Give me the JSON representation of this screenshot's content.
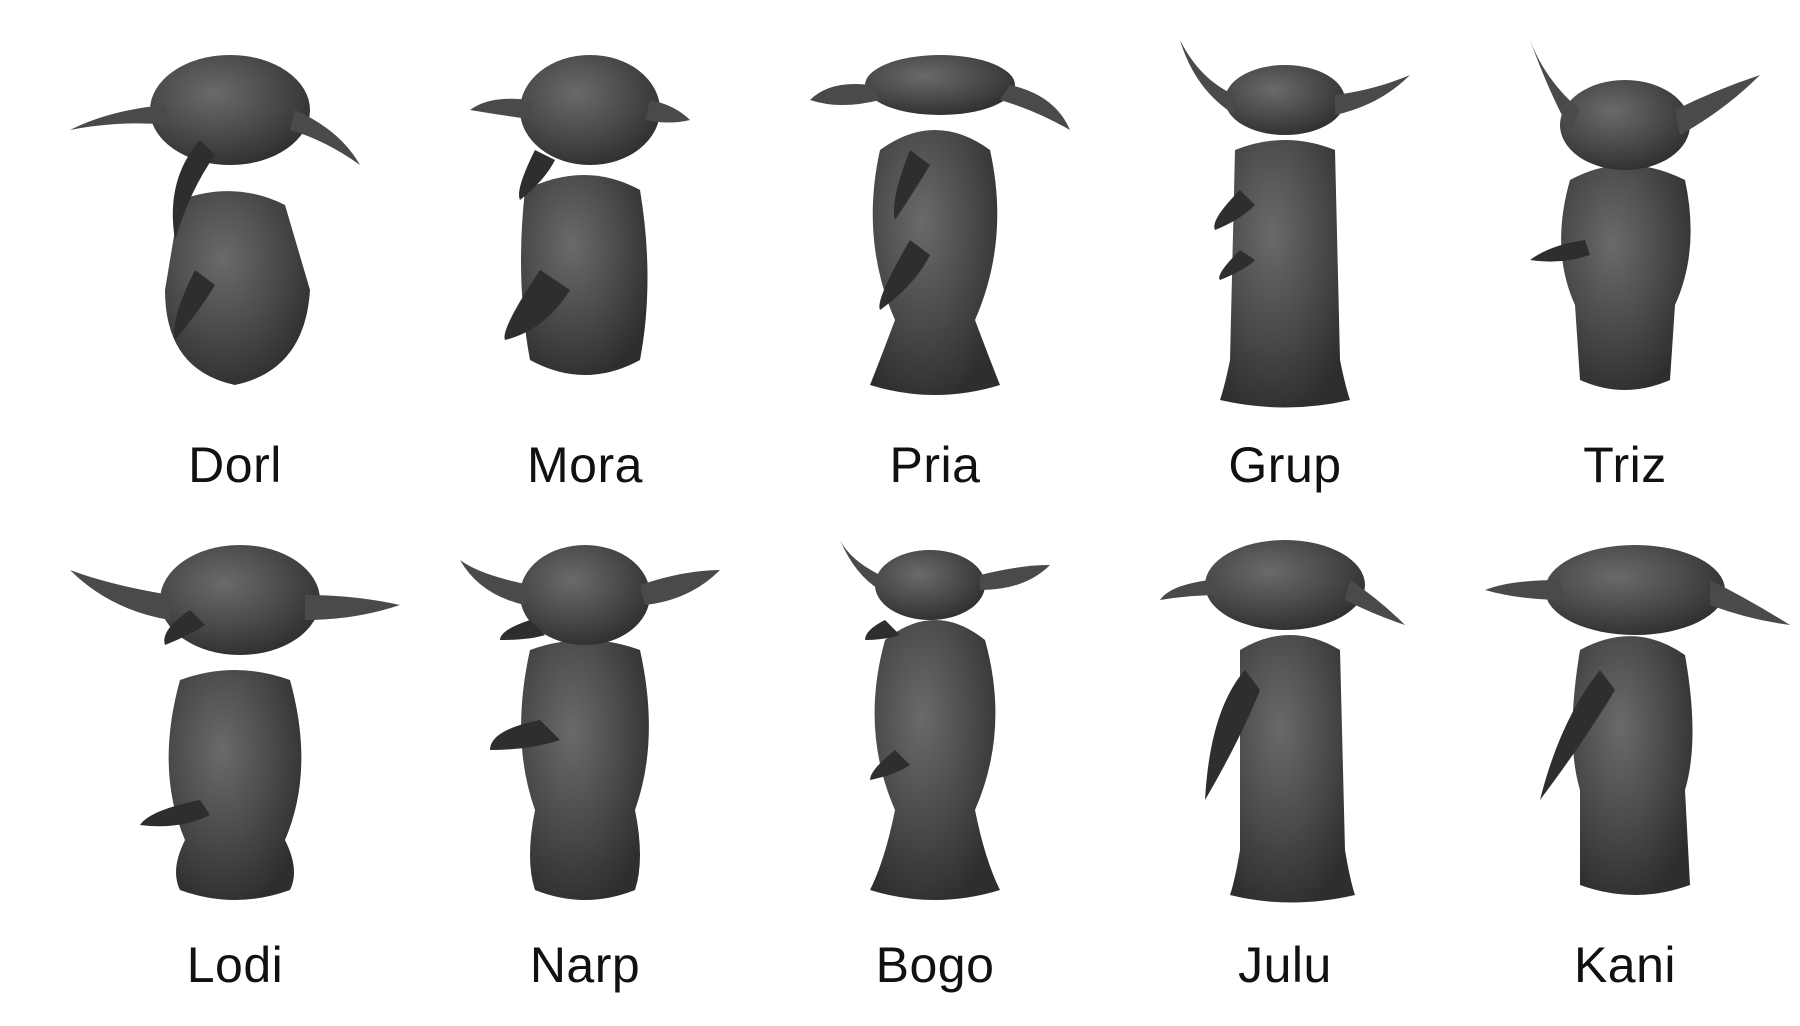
{
  "figures": [
    {
      "name": "Dorl",
      "row": 0,
      "col": 0,
      "variant": 0
    },
    {
      "name": "Mora",
      "row": 0,
      "col": 1,
      "variant": 1
    },
    {
      "name": "Pria",
      "row": 0,
      "col": 2,
      "variant": 2
    },
    {
      "name": "Grup",
      "row": 0,
      "col": 3,
      "variant": 3
    },
    {
      "name": "Triz",
      "row": 0,
      "col": 4,
      "variant": 4
    },
    {
      "name": "Lodi",
      "row": 1,
      "col": 0,
      "variant": 5
    },
    {
      "name": "Narp",
      "row": 1,
      "col": 1,
      "variant": 6
    },
    {
      "name": "Bogo",
      "row": 1,
      "col": 2,
      "variant": 7
    },
    {
      "name": "Julu",
      "row": 1,
      "col": 3,
      "variant": 8
    },
    {
      "name": "Kani",
      "row": 1,
      "col": 4,
      "variant": 9
    }
  ],
  "colors": {
    "figure_dark": "#2e2e2e",
    "figure_mid": "#4a4a4a",
    "figure_light": "#6a6a6a",
    "label": "#111111",
    "background": "#ffffff"
  }
}
